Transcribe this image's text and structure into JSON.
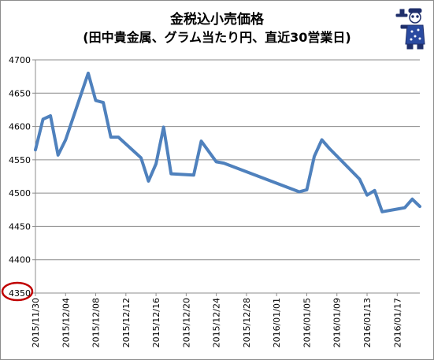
{
  "chart_data": {
    "type": "line",
    "title_line1": "金税込小売価格",
    "title_line2": "(田中貴金属、グラム当たり円、直近30営業日)",
    "xlabel": "",
    "ylabel": "",
    "ylim": [
      4350,
      4700
    ],
    "yticks": [
      4350,
      4400,
      4450,
      4500,
      4550,
      4600,
      4650,
      4700
    ],
    "xticks": [
      "2015/11/30",
      "2015/12/04",
      "2015/12/08",
      "2015/12/12",
      "2015/12/16",
      "2015/12/20",
      "2015/12/24",
      "2015/12/28",
      "2016/01/01",
      "2016/01/05",
      "2016/01/09",
      "2016/01/13",
      "2016/01/17"
    ],
    "x_start": "2015/11/30",
    "x_end": "2016/01/20",
    "grid": "horizontal",
    "line_color": "#4f81bd",
    "annotation": "red circle around 4350 tick label",
    "annotation_color": "#c00000",
    "series": [
      {
        "x": [
          "2015/11/30",
          "2015/12/01",
          "2015/12/02",
          "2015/12/03",
          "2015/12/04",
          "2015/12/07",
          "2015/12/08",
          "2015/12/09",
          "2015/12/10",
          "2015/12/11",
          "2015/12/14",
          "2015/12/15",
          "2015/12/16",
          "2015/12/17",
          "2015/12/18",
          "2015/12/21",
          "2015/12/22",
          "2015/12/24",
          "2015/12/25",
          "2016/01/04",
          "2016/01/05",
          "2016/01/06",
          "2016/01/07",
          "2016/01/08",
          "2016/01/12",
          "2016/01/13",
          "2016/01/14",
          "2016/01/15",
          "2016/01/18",
          "2016/01/19",
          "2016/01/20"
        ],
        "values": [
          4565,
          4611,
          4616,
          4557,
          4580,
          4680,
          4639,
          4636,
          4584,
          4584,
          4553,
          4518,
          4544,
          4599,
          4529,
          4527,
          4578,
          4547,
          4545,
          4502,
          4505,
          4555,
          4580,
          4567,
          4521,
          4497,
          4504,
          4472,
          4478,
          4491,
          4480
        ]
      }
    ]
  }
}
